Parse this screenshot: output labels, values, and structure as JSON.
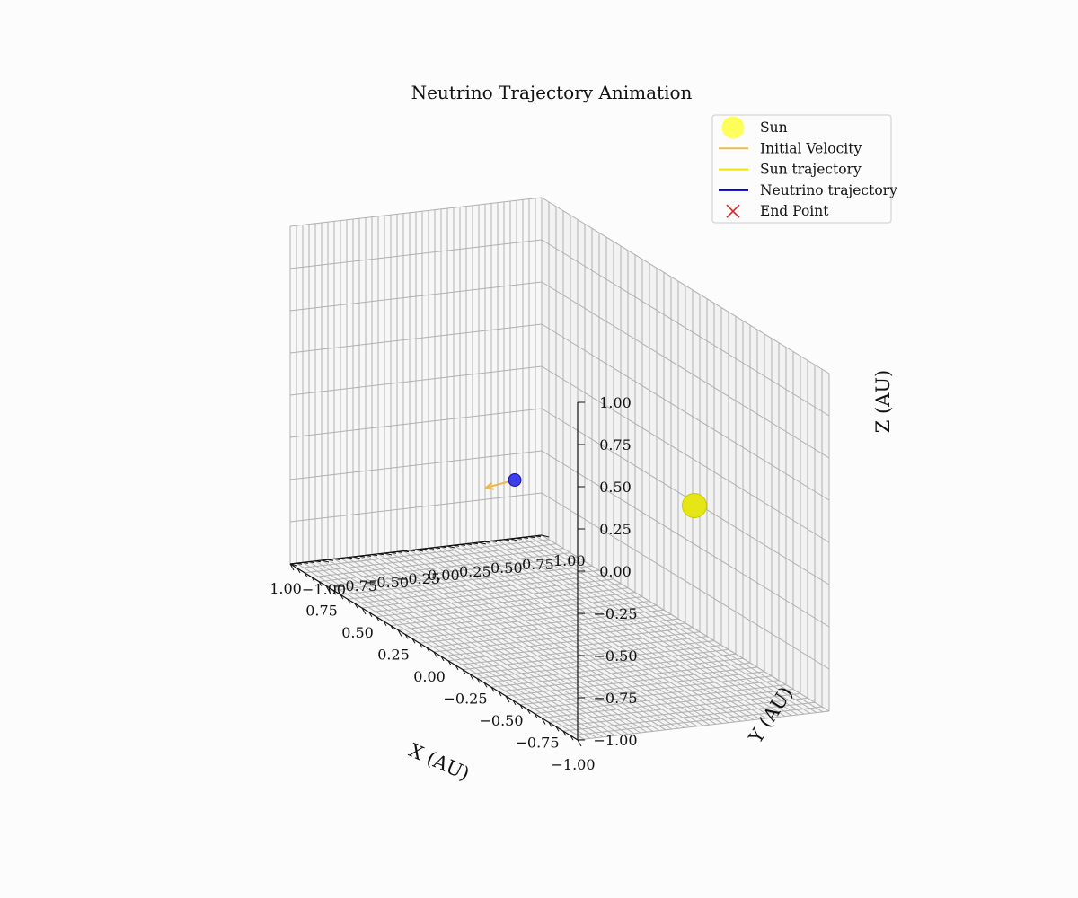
{
  "chart_data": {
    "type": "scatter",
    "title": "Neutrino Trajectory Animation",
    "xlabel": "X (AU)",
    "ylabel": "Y (AU)",
    "zlabel": "Z (AU)",
    "xlim": [
      -1,
      1
    ],
    "ylim": [
      -1,
      1
    ],
    "zlim": [
      -1,
      1
    ],
    "x_ticks": [
      "−1.00",
      "−0.75",
      "−0.50",
      "−0.25",
      "0.00",
      "0.25",
      "0.50",
      "0.75",
      "1.00"
    ],
    "y_ticks": [
      "−1.00",
      "−0.75",
      "−0.50",
      "−0.25",
      "0.00",
      "0.25",
      "0.50",
      "0.75",
      "1.00"
    ],
    "z_ticks": [
      "−1.00",
      "−0.75",
      "−0.50",
      "−0.25",
      "0.00",
      "0.25",
      "0.50",
      "0.75",
      "1.00"
    ],
    "grid": true,
    "legend_position": "top-right",
    "legend": [
      {
        "label": "Sun",
        "marker": "circle",
        "color": "#ffff40"
      },
      {
        "label": "Initial Velocity",
        "marker": "line",
        "color": "#f0b94a"
      },
      {
        "label": "Sun trajectory",
        "marker": "line",
        "color": "#e8e800"
      },
      {
        "label": "Neutrino trajectory",
        "marker": "line",
        "color": "#0000cc"
      },
      {
        "label": "End Point",
        "marker": "x",
        "color": "#d62728"
      }
    ],
    "points": {
      "sun": {
        "x": -0.5,
        "y": 0.5,
        "z": 0.0,
        "color": "#e6e617"
      },
      "neutrino": {
        "x": 0.75,
        "y": 0.5,
        "z": -0.5,
        "color": "#2a2aee"
      }
    },
    "velocity_arrow": {
      "dx": 0.2,
      "dy": 0.0,
      "dz": -0.15,
      "color": "#f0b94a"
    }
  }
}
